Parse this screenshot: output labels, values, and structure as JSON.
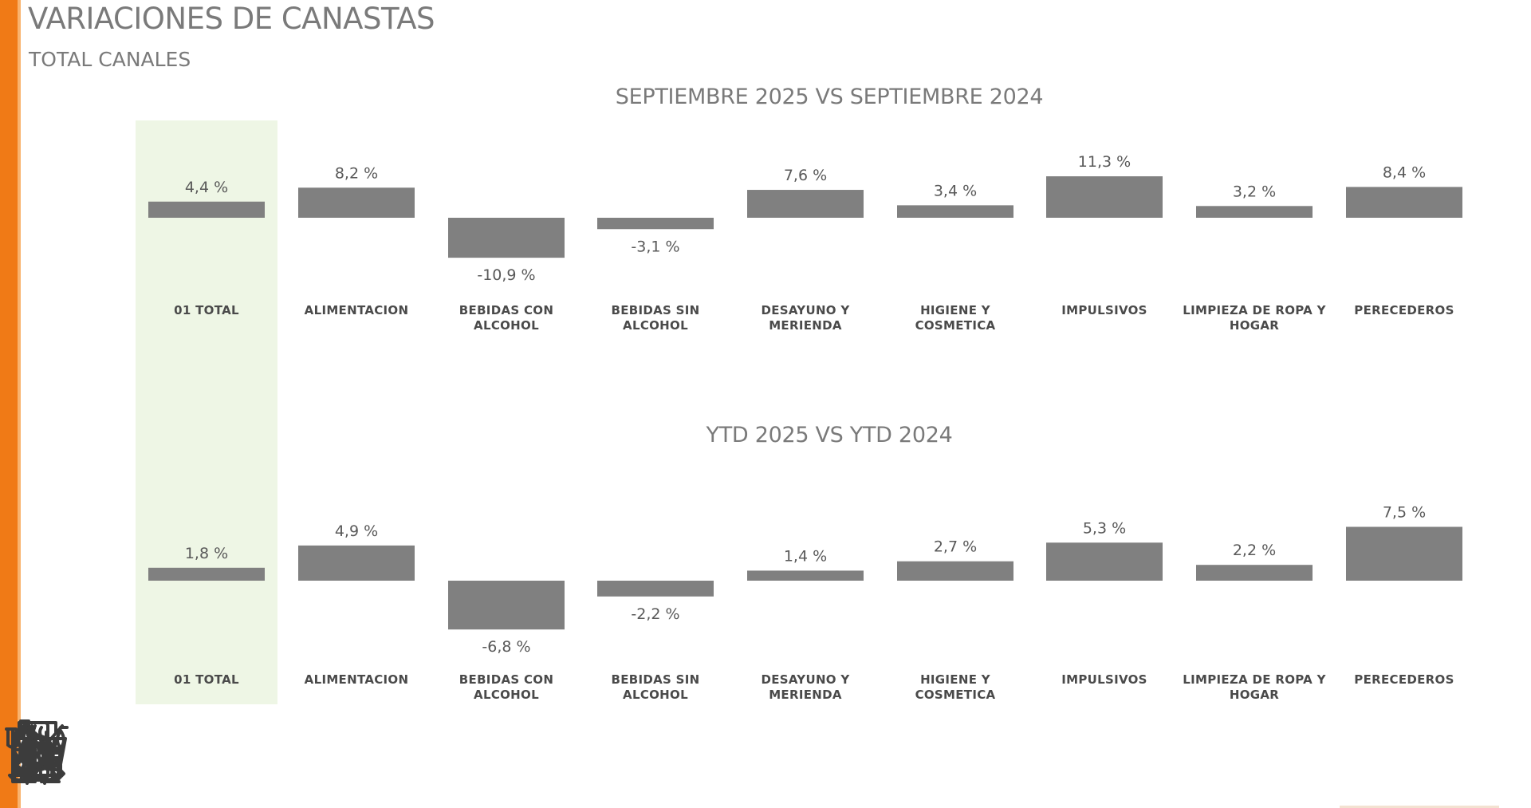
{
  "title": "VARIACIONES DE CANASTAS",
  "subtitle": "TOTAL CANALES",
  "colors": {
    "accent": "#f07a16",
    "bar": "#808080",
    "highlight": "#eef6e5"
  },
  "chart_data": [
    {
      "type": "bar",
      "title": "SEPTIEMBRE 2025 VS SEPTIEMBRE 2024",
      "categories": [
        "01 TOTAL",
        "ALIMENTACION",
        "BEBIDAS CON ALCOHOL",
        "BEBIDAS SIN ALCOHOL",
        "DESAYUNO Y MERIENDA",
        "HIGIENE Y COSMETICA",
        "IMPULSIVOS",
        "LIMPIEZA DE ROPA Y HOGAR",
        "PERECEDEROS"
      ],
      "values": [
        4.4,
        8.2,
        -10.9,
        -3.1,
        7.6,
        3.4,
        11.3,
        3.2,
        8.4
      ],
      "labels": [
        "4,4 %",
        "8,2 %",
        "-10,9 %",
        "-3,1 %",
        "7,6 %",
        "3,4 %",
        "11,3 %",
        "3,2 %",
        "8,4 %"
      ],
      "highlight_category": "01 TOTAL",
      "xlabel": "",
      "ylabel": "",
      "grid": false
    },
    {
      "type": "bar",
      "title": "YTD 2025 VS YTD 2024",
      "categories": [
        "01 TOTAL",
        "ALIMENTACION",
        "BEBIDAS CON ALCOHOL",
        "BEBIDAS SIN ALCOHOL",
        "DESAYUNO Y MERIENDA",
        "HIGIENE Y COSMETICA",
        "IMPULSIVOS",
        "LIMPIEZA DE ROPA Y HOGAR",
        "PERECEDEROS"
      ],
      "values": [
        1.8,
        4.9,
        -6.8,
        -2.2,
        1.4,
        2.7,
        5.3,
        2.2,
        7.5
      ],
      "labels": [
        "1,8 %",
        "4,9 %",
        "-6,8 %",
        "-2,2 %",
        "1,4 %",
        "2,7 %",
        "5,3 %",
        "2,2 %",
        "7,5 %"
      ],
      "highlight_category": "01 TOTAL",
      "xlabel": "",
      "ylabel": "",
      "grid": false
    }
  ],
  "icons": [
    "cart-icon",
    "cutlery-plate-icon",
    "wine-bottle-glass-icon",
    "soda-bottle-cup-icon",
    "coffee-cup-icon",
    "shower-icon",
    "lollipop-icon",
    "broom-icon",
    "refrigerator-icon"
  ]
}
